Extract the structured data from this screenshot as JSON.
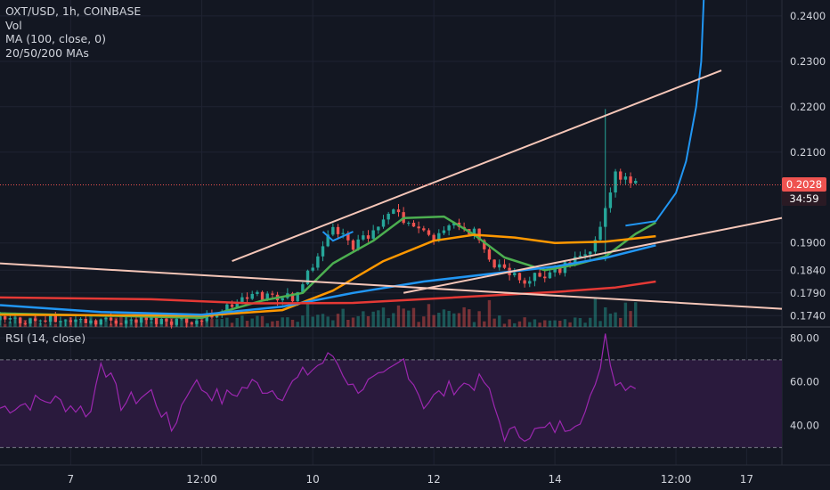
{
  "legend": {
    "title": "OXT/USD, 1h, COINBASE",
    "vol": "Vol",
    "ma": "MA (100, close, 0)",
    "mas": "20/50/200 MAs"
  },
  "rsi_label": "RSI (14, close)",
  "last_price": {
    "value": "0.2028",
    "countdown": "34:59",
    "color": "#ef5350"
  },
  "colors": {
    "background": "#131722",
    "grid": "#1f2332",
    "up": "#26a69a",
    "down": "#ef5350",
    "ma20": "#4caf50",
    "ma50": "#ff9800",
    "ma200": "#e53935",
    "ma100": "#2196f3",
    "trendline": "#f5c6b8",
    "rsi_line": "#9c27b0",
    "rsi_band": "#2a1a3d"
  },
  "chart_data": [
    {
      "type": "candlestick",
      "title": "OXT/USD, 1h, COINBASE",
      "x_ticks": [
        "7",
        "12:00",
        "10",
        "12",
        "14",
        "12:00",
        "17"
      ],
      "y_ticks": [
        "0.2400",
        "0.2300",
        "0.2200",
        "0.2100",
        "0.1900",
        "0.1840",
        "0.1790",
        "0.1740"
      ],
      "ylim": [
        0.1715,
        0.2435
      ],
      "x_range_hours": [
        0,
        155
      ],
      "anchor_points": [
        {
          "t": 0,
          "close": 0.173
        },
        {
          "t": 40,
          "close": 0.173
        },
        {
          "t": 50,
          "close": 0.1785
        },
        {
          "t": 58,
          "close": 0.1782
        },
        {
          "t": 62,
          "close": 0.1855
        },
        {
          "t": 66,
          "close": 0.194
        },
        {
          "t": 70,
          "close": 0.1895
        },
        {
          "t": 74,
          "close": 0.192
        },
        {
          "t": 78,
          "close": 0.1965
        },
        {
          "t": 82,
          "close": 0.1935
        },
        {
          "t": 86,
          "close": 0.1905
        },
        {
          "t": 90,
          "close": 0.1945
        },
        {
          "t": 94,
          "close": 0.1925
        },
        {
          "t": 98,
          "close": 0.185
        },
        {
          "t": 104,
          "close": 0.182
        },
        {
          "t": 110,
          "close": 0.1835
        },
        {
          "t": 114,
          "close": 0.186
        },
        {
          "t": 118,
          "close": 0.19
        },
        {
          "t": 120,
          "close": 0.198
        },
        {
          "t": 122,
          "close": 0.205
        },
        {
          "t": 126,
          "close": 0.2028
        }
      ],
      "moving_averages": [
        {
          "name": "MA 20",
          "color": "#4caf50",
          "points": [
            [
              0,
              0.1745
            ],
            [
              40,
              0.1735
            ],
            [
              52,
              0.1773
            ],
            [
              60,
              0.179
            ],
            [
              66,
              0.1855
            ],
            [
              74,
              0.1905
            ],
            [
              80,
              0.1955
            ],
            [
              88,
              0.1958
            ],
            [
              94,
              0.1918
            ],
            [
              100,
              0.1868
            ],
            [
              108,
              0.184
            ],
            [
              114,
              0.1852
            ],
            [
              120,
              0.187
            ],
            [
              126,
              0.192
            ],
            [
              130,
              0.1945
            ]
          ]
        },
        {
          "name": "MA 50",
          "color": "#ff9800",
          "points": [
            [
              0,
              0.1742
            ],
            [
              40,
              0.174
            ],
            [
              56,
              0.1752
            ],
            [
              66,
              0.1795
            ],
            [
              76,
              0.186
            ],
            [
              86,
              0.1905
            ],
            [
              94,
              0.1918
            ],
            [
              102,
              0.1912
            ],
            [
              110,
              0.19
            ],
            [
              120,
              0.1903
            ],
            [
              130,
              0.1915
            ]
          ]
        },
        {
          "name": "MA 100",
          "color": "#2196f3",
          "points": [
            [
              0,
              0.1763
            ],
            [
              20,
              0.1748
            ],
            [
              40,
              0.1742
            ],
            [
              56,
              0.176
            ],
            [
              70,
              0.179
            ],
            [
              84,
              0.1815
            ],
            [
              98,
              0.1833
            ],
            [
              110,
              0.1848
            ],
            [
              120,
              0.1867
            ],
            [
              130,
              0.1895
            ]
          ]
        },
        {
          "name": "MA 200",
          "color": "#e53935",
          "points": [
            [
              0,
              0.178
            ],
            [
              30,
              0.1776
            ],
            [
              50,
              0.1767
            ],
            [
              70,
              0.1768
            ],
            [
              90,
              0.178
            ],
            [
              110,
              0.1792
            ],
            [
              122,
              0.1802
            ],
            [
              130,
              0.1815
            ]
          ]
        }
      ],
      "curve": {
        "name": "projection",
        "color": "#2196f3",
        "points": [
          [
            124,
            0.1938
          ],
          [
            130,
            0.1948
          ],
          [
            134,
            0.201
          ],
          [
            136,
            0.208
          ],
          [
            138,
            0.22
          ],
          [
            139,
            0.23
          ],
          [
            139.5,
            0.2435
          ]
        ]
      },
      "trendlines": [
        {
          "from": [
            46,
            0.186
          ],
          "to": [
            143,
            0.228
          ]
        },
        {
          "from": [
            0,
            0.1855
          ],
          "to": [
            155,
            0.1755
          ]
        },
        {
          "from": [
            80,
            0.179
          ],
          "to": [
            155,
            0.1955
          ]
        }
      ]
    },
    {
      "type": "line",
      "title": "RSI (14, close)",
      "y_ticks": [
        "80.00",
        "60.00",
        "40.00"
      ],
      "ylim": [
        22,
        85
      ],
      "upper_band": 70,
      "lower_band": 30,
      "anchor_points": [
        {
          "t": 0,
          "rsi": 48
        },
        {
          "t": 10,
          "rsi": 52
        },
        {
          "t": 18,
          "rsi": 46
        },
        {
          "t": 20,
          "rsi": 71
        },
        {
          "t": 24,
          "rsi": 50
        },
        {
          "t": 30,
          "rsi": 55
        },
        {
          "t": 34,
          "rsi": 38
        },
        {
          "t": 38,
          "rsi": 60
        },
        {
          "t": 44,
          "rsi": 52
        },
        {
          "t": 50,
          "rsi": 59
        },
        {
          "t": 56,
          "rsi": 55
        },
        {
          "t": 60,
          "rsi": 63
        },
        {
          "t": 66,
          "rsi": 72
        },
        {
          "t": 70,
          "rsi": 57
        },
        {
          "t": 76,
          "rsi": 61
        },
        {
          "t": 80,
          "rsi": 70
        },
        {
          "t": 84,
          "rsi": 50
        },
        {
          "t": 90,
          "rsi": 58
        },
        {
          "t": 96,
          "rsi": 60
        },
        {
          "t": 100,
          "rsi": 36
        },
        {
          "t": 106,
          "rsi": 37
        },
        {
          "t": 112,
          "rsi": 40
        },
        {
          "t": 116,
          "rsi": 46
        },
        {
          "t": 118,
          "rsi": 56
        },
        {
          "t": 120,
          "rsi": 82
        },
        {
          "t": 122,
          "rsi": 60
        },
        {
          "t": 126,
          "rsi": 59
        }
      ]
    }
  ]
}
